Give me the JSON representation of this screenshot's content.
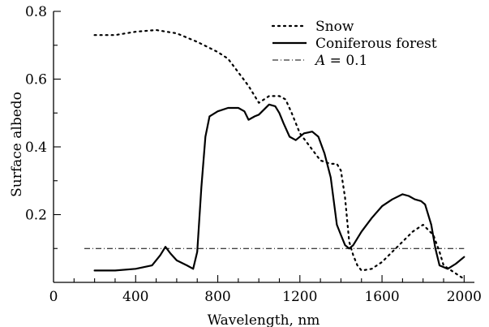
{
  "chart_data": {
    "type": "line",
    "xlabel": "Wavelength, nm",
    "ylabel": "Surface albedo",
    "xlim": [
      0,
      2050
    ],
    "ylim": [
      0,
      0.8
    ],
    "x_ticks": [
      0,
      400,
      800,
      1200,
      1600,
      2000
    ],
    "x_tick_labels": [
      "0",
      "400",
      "800",
      "1200",
      "1600",
      "2000"
    ],
    "y_ticks": [
      0.2,
      0.4,
      0.6,
      0.8
    ],
    "y_tick_labels": [
      "0.2",
      "0.4",
      "0.6",
      "0.8"
    ],
    "grid": false,
    "legend_position": "top-right",
    "series": [
      {
        "name": "Snow",
        "style": "dotted",
        "color": "#000000",
        "x": [
          200,
          300,
          400,
          500,
          600,
          700,
          800,
          850,
          900,
          950,
          1000,
          1050,
          1100,
          1130,
          1160,
          1200,
          1250,
          1300,
          1350,
          1380,
          1400,
          1420,
          1440,
          1460,
          1480,
          1500,
          1550,
          1600,
          1650,
          1700,
          1750,
          1800,
          1850,
          1880,
          1900,
          1950,
          2000
        ],
        "values": [
          0.73,
          0.73,
          0.74,
          0.745,
          0.735,
          0.71,
          0.68,
          0.66,
          0.62,
          0.58,
          0.53,
          0.55,
          0.55,
          0.54,
          0.5,
          0.44,
          0.4,
          0.36,
          0.35,
          0.35,
          0.33,
          0.25,
          0.12,
          0.08,
          0.05,
          0.035,
          0.04,
          0.06,
          0.09,
          0.12,
          0.15,
          0.17,
          0.14,
          0.09,
          0.05,
          0.03,
          0.01
        ]
      },
      {
        "name": "Coniferous forest",
        "style": "solid",
        "color": "#000000",
        "x": [
          200,
          300,
          400,
          480,
          520,
          545,
          570,
          600,
          650,
          680,
          700,
          720,
          740,
          760,
          800,
          850,
          900,
          930,
          950,
          980,
          1000,
          1050,
          1080,
          1100,
          1120,
          1150,
          1180,
          1220,
          1260,
          1290,
          1320,
          1350,
          1380,
          1400,
          1420,
          1440,
          1460,
          1500,
          1550,
          1600,
          1650,
          1700,
          1730,
          1760,
          1790,
          1810,
          1840,
          1860,
          1880,
          1920,
          1960,
          2000
        ],
        "values": [
          0.035,
          0.035,
          0.04,
          0.05,
          0.08,
          0.105,
          0.085,
          0.065,
          0.05,
          0.04,
          0.09,
          0.28,
          0.43,
          0.49,
          0.505,
          0.515,
          0.515,
          0.505,
          0.48,
          0.49,
          0.495,
          0.525,
          0.52,
          0.5,
          0.47,
          0.43,
          0.42,
          0.44,
          0.445,
          0.43,
          0.38,
          0.31,
          0.17,
          0.14,
          0.11,
          0.1,
          0.11,
          0.15,
          0.19,
          0.225,
          0.245,
          0.26,
          0.255,
          0.245,
          0.24,
          0.23,
          0.17,
          0.1,
          0.05,
          0.04,
          0.055,
          0.075
        ]
      },
      {
        "name": "A = 0.1",
        "legend_label_prefix": "A",
        "legend_label_suffix": " = 0.1",
        "style": "dashdot",
        "color": "#000000",
        "x": [
          150,
          2000
        ],
        "values": [
          0.1,
          0.1
        ]
      }
    ]
  }
}
